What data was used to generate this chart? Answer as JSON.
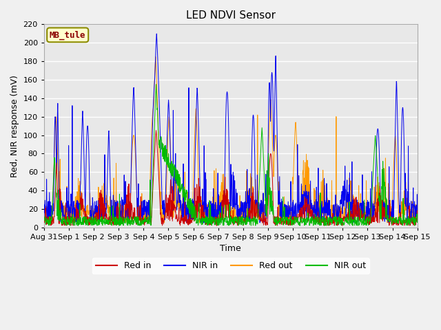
{
  "title": "LED NDVI Sensor",
  "xlabel": "Time",
  "ylabel": "Red, NIR response (mV)",
  "ylim": [
    0,
    220
  ],
  "annotation": "MB_tule",
  "legend_entries": [
    "Red in",
    "NIR in",
    "Red out",
    "NIR out"
  ],
  "line_colors": [
    "#cc0000",
    "#0000ee",
    "#ff9900",
    "#00bb00"
  ],
  "tick_labels": [
    "Aug 31",
    "Sep 1",
    "Sep 2",
    "Sep 3",
    "Sep 4",
    "Sep 5",
    "Sep 6",
    "Sep 7",
    "Sep 8",
    "Sep 9",
    "Sep 10",
    "Sep 11",
    "Sep 12",
    "Sep 13",
    "Sep 14",
    "Sep 15"
  ],
  "background_color": "#e8e8e8",
  "grid_color": "#ffffff",
  "fig_bg": "#f0f0f0"
}
